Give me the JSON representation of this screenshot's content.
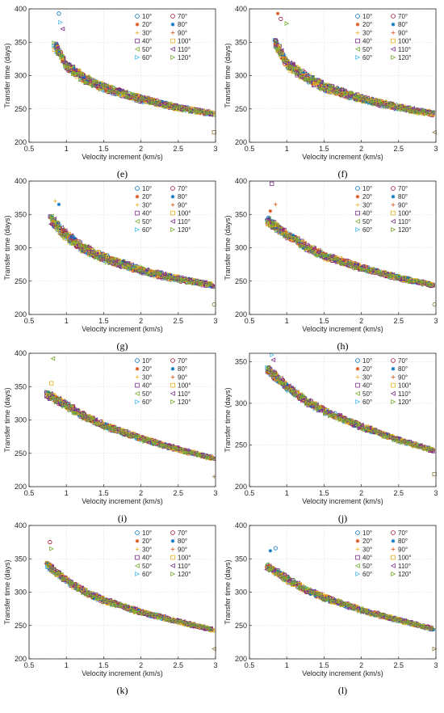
{
  "figure": {
    "panels": [
      {
        "label": "(e)"
      },
      {
        "label": "(f)"
      },
      {
        "label": "(g)"
      },
      {
        "label": "(h)"
      },
      {
        "label": "(i)"
      },
      {
        "label": "(j)"
      },
      {
        "label": "(k)"
      },
      {
        "label": "(l)"
      }
    ]
  },
  "colors": {
    "10°": "#0072BD",
    "20°": "#D95319",
    "30°": "#EDB120",
    "40°": "#7E2F8E",
    "50°": "#77AC30",
    "60°": "#4DBEEE",
    "70°": "#A2142F",
    "80°": "#0072BD",
    "90°": "#D95319",
    "100°": "#EDB120",
    "110°": "#7E2F8E",
    "120°": "#77AC30"
  },
  "chart_data": [
    {
      "panel": "(e)",
      "type": "scatter",
      "xlabel": "Velocity increment (km/s)",
      "ylabel": "Transfer time (days)",
      "xlim": [
        0.5,
        3
      ],
      "ylim": [
        200,
        400
      ],
      "xticks": [
        0.5,
        1,
        1.5,
        2,
        2.5,
        3
      ],
      "yticks": [
        200,
        250,
        300,
        350,
        400
      ],
      "grid": true,
      "legend_position": "top-right",
      "series_names": [
        "10°",
        "20°",
        "30°",
        "40°",
        "50°",
        "60°",
        "70°",
        "80°",
        "90°",
        "100°",
        "110°",
        "120°"
      ],
      "trend": {
        "x": [
          0.85,
          1.0,
          1.25,
          1.5,
          2.0,
          2.5,
          2.95
        ],
        "y": [
          345,
          315,
          295,
          282,
          265,
          252,
          243
        ]
      },
      "outliers": [
        {
          "x": 0.9,
          "y": 393
        },
        {
          "x": 0.92,
          "y": 380
        },
        {
          "x": 0.95,
          "y": 370
        },
        {
          "x": 2.98,
          "y": 215
        }
      ],
      "spread": 9
    },
    {
      "panel": "(f)",
      "type": "scatter",
      "xlabel": "Velocity increment (km/s)",
      "ylabel": "Transfer time (days)",
      "xlim": [
        0.5,
        3
      ],
      "ylim": [
        200,
        400
      ],
      "xticks": [
        0.5,
        1,
        1.5,
        2,
        2.5,
        3
      ],
      "yticks": [
        200,
        250,
        300,
        350,
        400
      ],
      "grid": true,
      "legend_position": "top-right",
      "series_names": [
        "10°",
        "20°",
        "30°",
        "40°",
        "50°",
        "60°",
        "70°",
        "80°",
        "90°",
        "100°",
        "110°",
        "120°"
      ],
      "trend": {
        "x": [
          0.85,
          1.0,
          1.25,
          1.5,
          2.0,
          2.5,
          2.95
        ],
        "y": [
          348,
          318,
          298,
          283,
          265,
          252,
          243
        ]
      },
      "outliers": [
        {
          "x": 0.88,
          "y": 393
        },
        {
          "x": 0.92,
          "y": 385
        },
        {
          "x": 1.0,
          "y": 378
        },
        {
          "x": 2.98,
          "y": 215
        }
      ],
      "spread": 10
    },
    {
      "panel": "(g)",
      "type": "scatter",
      "xlabel": "Velocity increment (km/s)",
      "ylabel": "Transfer time (days)",
      "xlim": [
        0.5,
        3
      ],
      "ylim": [
        200,
        400
      ],
      "xticks": [
        0.5,
        1,
        1.5,
        2,
        2.5,
        3
      ],
      "yticks": [
        200,
        250,
        300,
        350,
        400
      ],
      "grid": true,
      "legend_position": "top-right",
      "series_names": [
        "10°",
        "20°",
        "30°",
        "40°",
        "50°",
        "60°",
        "70°",
        "80°",
        "90°",
        "100°",
        "110°",
        "120°"
      ],
      "trend": {
        "x": [
          0.8,
          1.0,
          1.25,
          1.5,
          2.0,
          2.5,
          2.95
        ],
        "y": [
          342,
          318,
          298,
          285,
          266,
          253,
          244
        ]
      },
      "outliers": [
        {
          "x": 0.85,
          "y": 370
        },
        {
          "x": 0.9,
          "y": 365
        },
        {
          "x": 2.98,
          "y": 215
        }
      ],
      "spread": 10
    },
    {
      "panel": "(h)",
      "type": "scatter",
      "xlabel": "Velocity increment (km/s)",
      "ylabel": "Transfer time (days)",
      "xlim": [
        0.5,
        3
      ],
      "ylim": [
        200,
        400
      ],
      "xticks": [
        0.5,
        1,
        1.5,
        2,
        2.5,
        3
      ],
      "yticks": [
        200,
        250,
        300,
        350,
        400
      ],
      "grid": true,
      "legend_position": "top-right",
      "series_names": [
        "10°",
        "20°",
        "30°",
        "40°",
        "50°",
        "60°",
        "70°",
        "80°",
        "90°",
        "100°",
        "110°",
        "120°"
      ],
      "trend": {
        "x": [
          0.75,
          1.0,
          1.25,
          1.5,
          2.0,
          2.5,
          2.95
        ],
        "y": [
          340,
          320,
          302,
          288,
          270,
          255,
          244
        ]
      },
      "outliers": [
        {
          "x": 0.8,
          "y": 396
        },
        {
          "x": 0.85,
          "y": 365
        },
        {
          "x": 0.78,
          "y": 355
        },
        {
          "x": 2.98,
          "y": 215
        }
      ],
      "spread": 8
    },
    {
      "panel": "(i)",
      "type": "scatter",
      "xlabel": "Velocity increment (km/s)",
      "ylabel": "Transfer time (days)",
      "xlim": [
        0.5,
        3
      ],
      "ylim": [
        200,
        400
      ],
      "xticks": [
        0.5,
        1,
        1.5,
        2,
        2.5,
        3
      ],
      "yticks": [
        200,
        250,
        300,
        350,
        400
      ],
      "grid": true,
      "legend_position": "top-right",
      "series_names": [
        "10°",
        "20°",
        "30°",
        "40°",
        "50°",
        "60°",
        "70°",
        "80°",
        "90°",
        "100°",
        "110°",
        "120°"
      ],
      "trend": {
        "x": [
          0.75,
          1.0,
          1.25,
          1.5,
          2.0,
          2.5,
          2.95
        ],
        "y": [
          338,
          322,
          305,
          292,
          272,
          256,
          243
        ]
      },
      "outliers": [
        {
          "x": 0.82,
          "y": 392
        },
        {
          "x": 0.8,
          "y": 355
        },
        {
          "x": 2.98,
          "y": 215
        }
      ],
      "spread": 7
    },
    {
      "panel": "(j)",
      "type": "scatter",
      "xlabel": "Velocity increment (km/s)",
      "ylabel": "Transfer time (days)",
      "xlim": [
        0.5,
        3
      ],
      "ylim": [
        200,
        360
      ],
      "xticks": [
        0.5,
        1,
        1.5,
        2,
        2.5,
        3
      ],
      "yticks": [
        200,
        250,
        300,
        350
      ],
      "grid": true,
      "legend_position": "top-right",
      "series_names": [
        "10°",
        "20°",
        "30°",
        "40°",
        "50°",
        "60°",
        "70°",
        "80°",
        "90°",
        "100°",
        "110°",
        "120°"
      ],
      "trend": {
        "x": [
          0.75,
          1.0,
          1.25,
          1.5,
          2.0,
          2.5,
          2.95
        ],
        "y": [
          340,
          320,
          303,
          291,
          272,
          256,
          244
        ]
      },
      "outliers": [
        {
          "x": 0.8,
          "y": 358
        },
        {
          "x": 0.82,
          "y": 352
        },
        {
          "x": 2.98,
          "y": 215
        }
      ],
      "spread": 6
    },
    {
      "panel": "(k)",
      "type": "scatter",
      "xlabel": "Velocity increment (km/s)",
      "ylabel": "Transfer time (days)",
      "xlim": [
        0.5,
        3
      ],
      "ylim": [
        200,
        400
      ],
      "xticks": [
        0.5,
        1,
        1.5,
        2,
        2.5,
        3
      ],
      "yticks": [
        200,
        250,
        300,
        350,
        400
      ],
      "grid": true,
      "legend_position": "top-right",
      "series_names": [
        "10°",
        "20°",
        "30°",
        "40°",
        "50°",
        "60°",
        "70°",
        "80°",
        "90°",
        "100°",
        "110°",
        "120°"
      ],
      "trend": {
        "x": [
          0.75,
          1.0,
          1.25,
          1.5,
          2.0,
          2.5,
          2.95
        ],
        "y": [
          340,
          318,
          300,
          288,
          270,
          256,
          244
        ]
      },
      "outliers": [
        {
          "x": 0.78,
          "y": 375
        },
        {
          "x": 0.8,
          "y": 365
        },
        {
          "x": 2.98,
          "y": 215
        }
      ],
      "spread": 6
    },
    {
      "panel": "(l)",
      "type": "scatter",
      "xlabel": "Velocity increment (km/s)",
      "ylabel": "Transfer time (days)",
      "xlim": [
        0.5,
        3
      ],
      "ylim": [
        200,
        400
      ],
      "xticks": [
        0.5,
        1,
        1.5,
        2,
        2.5,
        3
      ],
      "yticks": [
        200,
        250,
        300,
        350,
        400
      ],
      "grid": true,
      "legend_position": "top-right",
      "series_names": [
        "10°",
        "20°",
        "30°",
        "40°",
        "50°",
        "60°",
        "70°",
        "80°",
        "90°",
        "100°",
        "110°",
        "120°"
      ],
      "trend": {
        "x": [
          0.75,
          1.0,
          1.25,
          1.5,
          2.0,
          2.5,
          2.95
        ],
        "y": [
          338,
          320,
          304,
          292,
          273,
          258,
          245
        ]
      },
      "outliers": [
        {
          "x": 0.78,
          "y": 362
        },
        {
          "x": 0.85,
          "y": 366
        },
        {
          "x": 2.98,
          "y": 215
        }
      ],
      "spread": 6
    }
  ]
}
